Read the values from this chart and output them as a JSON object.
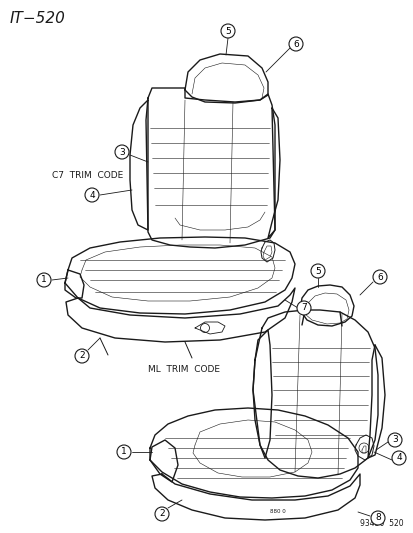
{
  "title": "IT−520",
  "label1": "C7  TRIM  CODE",
  "label2": "ML  TRIM  CODE",
  "footnote": "93430  520",
  "bg_color": "#ffffff",
  "line_color": "#1a1a1a",
  "font_size_title": 11,
  "font_size_labels": 6.5,
  "font_size_callout": 6.5,
  "font_size_footnote": 5.5
}
